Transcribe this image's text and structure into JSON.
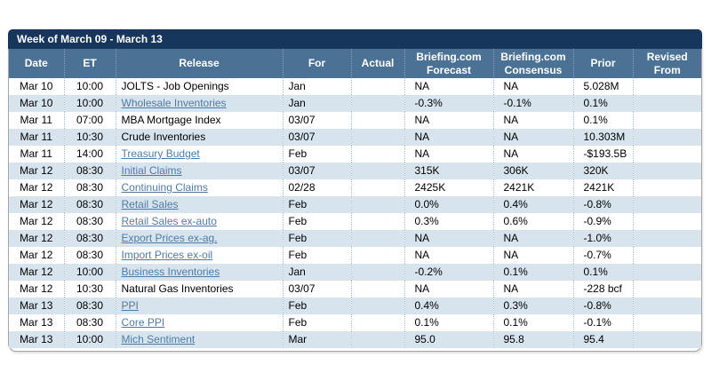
{
  "title_bar": {
    "text": "Week of March 09 - March 13"
  },
  "colors": {
    "title_bar_bg": "#16365c",
    "header_bg": "#4b7295",
    "alt_row_bg": "#d7e4ed",
    "link_color": "#4e7ba5",
    "panel_border": "#a6a6a6"
  },
  "table": {
    "columns": [
      {
        "key": "date",
        "label": "Date"
      },
      {
        "key": "et",
        "label": "ET"
      },
      {
        "key": "release",
        "label": "Release"
      },
      {
        "key": "for",
        "label": "For"
      },
      {
        "key": "actual",
        "label": "Actual"
      },
      {
        "key": "forecast",
        "label": "Briefing.com Forecast"
      },
      {
        "key": "consensus",
        "label": "Briefing.com Consensus"
      },
      {
        "key": "prior",
        "label": "Prior"
      },
      {
        "key": "revised",
        "label": "Revised From"
      }
    ],
    "rows": [
      {
        "date": "Mar 10",
        "et": "10:00",
        "release": "JOLTS - Job Openings",
        "is_link": false,
        "for": "Jan",
        "actual": "",
        "forecast": "NA",
        "consensus": "NA",
        "prior": "5.028M",
        "revised": ""
      },
      {
        "date": "Mar 10",
        "et": "10:00",
        "release": "Wholesale Inventories",
        "is_link": true,
        "for": "Jan",
        "actual": "",
        "forecast": "-0.3%",
        "consensus": "-0.1%",
        "prior": "0.1%",
        "revised": ""
      },
      {
        "date": "Mar 11",
        "et": "07:00",
        "release": "MBA Mortgage Index",
        "is_link": false,
        "for": "03/07",
        "actual": "",
        "forecast": "NA",
        "consensus": "NA",
        "prior": "0.1%",
        "revised": ""
      },
      {
        "date": "Mar 11",
        "et": "10:30",
        "release": "Crude Inventories",
        "is_link": false,
        "for": "03/07",
        "actual": "",
        "forecast": "NA",
        "consensus": "NA",
        "prior": "10.303M",
        "revised": ""
      },
      {
        "date": "Mar 11",
        "et": "14:00",
        "release": "Treasury Budget",
        "is_link": true,
        "for": "Feb",
        "actual": "",
        "forecast": "NA",
        "consensus": "NA",
        "prior": "-$193.5B",
        "revised": ""
      },
      {
        "date": "Mar 12",
        "et": "08:30",
        "release": "Initial Claims",
        "is_link": true,
        "for": "03/07",
        "actual": "",
        "forecast": "315K",
        "consensus": "306K",
        "prior": "320K",
        "revised": ""
      },
      {
        "date": "Mar 12",
        "et": "08:30",
        "release": "Continuing Claims",
        "is_link": true,
        "for": "02/28",
        "actual": "",
        "forecast": "2425K",
        "consensus": "2421K",
        "prior": "2421K",
        "revised": ""
      },
      {
        "date": "Mar 12",
        "et": "08:30",
        "release": "Retail Sales",
        "is_link": true,
        "for": "Feb",
        "actual": "",
        "forecast": "0.0%",
        "consensus": "0.4%",
        "prior": "-0.8%",
        "revised": ""
      },
      {
        "date": "Mar 12",
        "et": "08:30",
        "release": "Retail Sales ex-auto",
        "is_link": true,
        "for": "Feb",
        "actual": "",
        "forecast": "0.3%",
        "consensus": "0.6%",
        "prior": "-0.9%",
        "revised": ""
      },
      {
        "date": "Mar 12",
        "et": "08:30",
        "release": "Export Prices ex-ag.",
        "is_link": true,
        "for": "Feb",
        "actual": "",
        "forecast": "NA",
        "consensus": "NA",
        "prior": "-1.0%",
        "revised": ""
      },
      {
        "date": "Mar 12",
        "et": "08:30",
        "release": "Import Prices ex-oil",
        "is_link": true,
        "for": "Feb",
        "actual": "",
        "forecast": "NA",
        "consensus": "NA",
        "prior": "-0.7%",
        "revised": ""
      },
      {
        "date": "Mar 12",
        "et": "10:00",
        "release": "Business Inventories",
        "is_link": true,
        "for": "Jan",
        "actual": "",
        "forecast": "-0.2%",
        "consensus": "0.1%",
        "prior": "0.1%",
        "revised": ""
      },
      {
        "date": "Mar 12",
        "et": "10:30",
        "release": "Natural Gas Inventories",
        "is_link": false,
        "for": "03/07",
        "actual": "",
        "forecast": "NA",
        "consensus": "NA",
        "prior": "-228 bcf",
        "revised": ""
      },
      {
        "date": "Mar 13",
        "et": "08:30",
        "release": "PPI",
        "is_link": true,
        "for": "Feb",
        "actual": "",
        "forecast": "0.4%",
        "consensus": "0.3%",
        "prior": "-0.8%",
        "revised": ""
      },
      {
        "date": "Mar 13",
        "et": "08:30",
        "release": "Core PPI",
        "is_link": true,
        "for": "Feb",
        "actual": "",
        "forecast": "0.1%",
        "consensus": "0.1%",
        "prior": "-0.1%",
        "revised": ""
      },
      {
        "date": "Mar 13",
        "et": "10:00",
        "release": "Mich Sentiment",
        "is_link": true,
        "for": "Mar",
        "actual": "",
        "forecast": "95.0",
        "consensus": "95.8",
        "prior": "95.4",
        "revised": ""
      }
    ]
  }
}
